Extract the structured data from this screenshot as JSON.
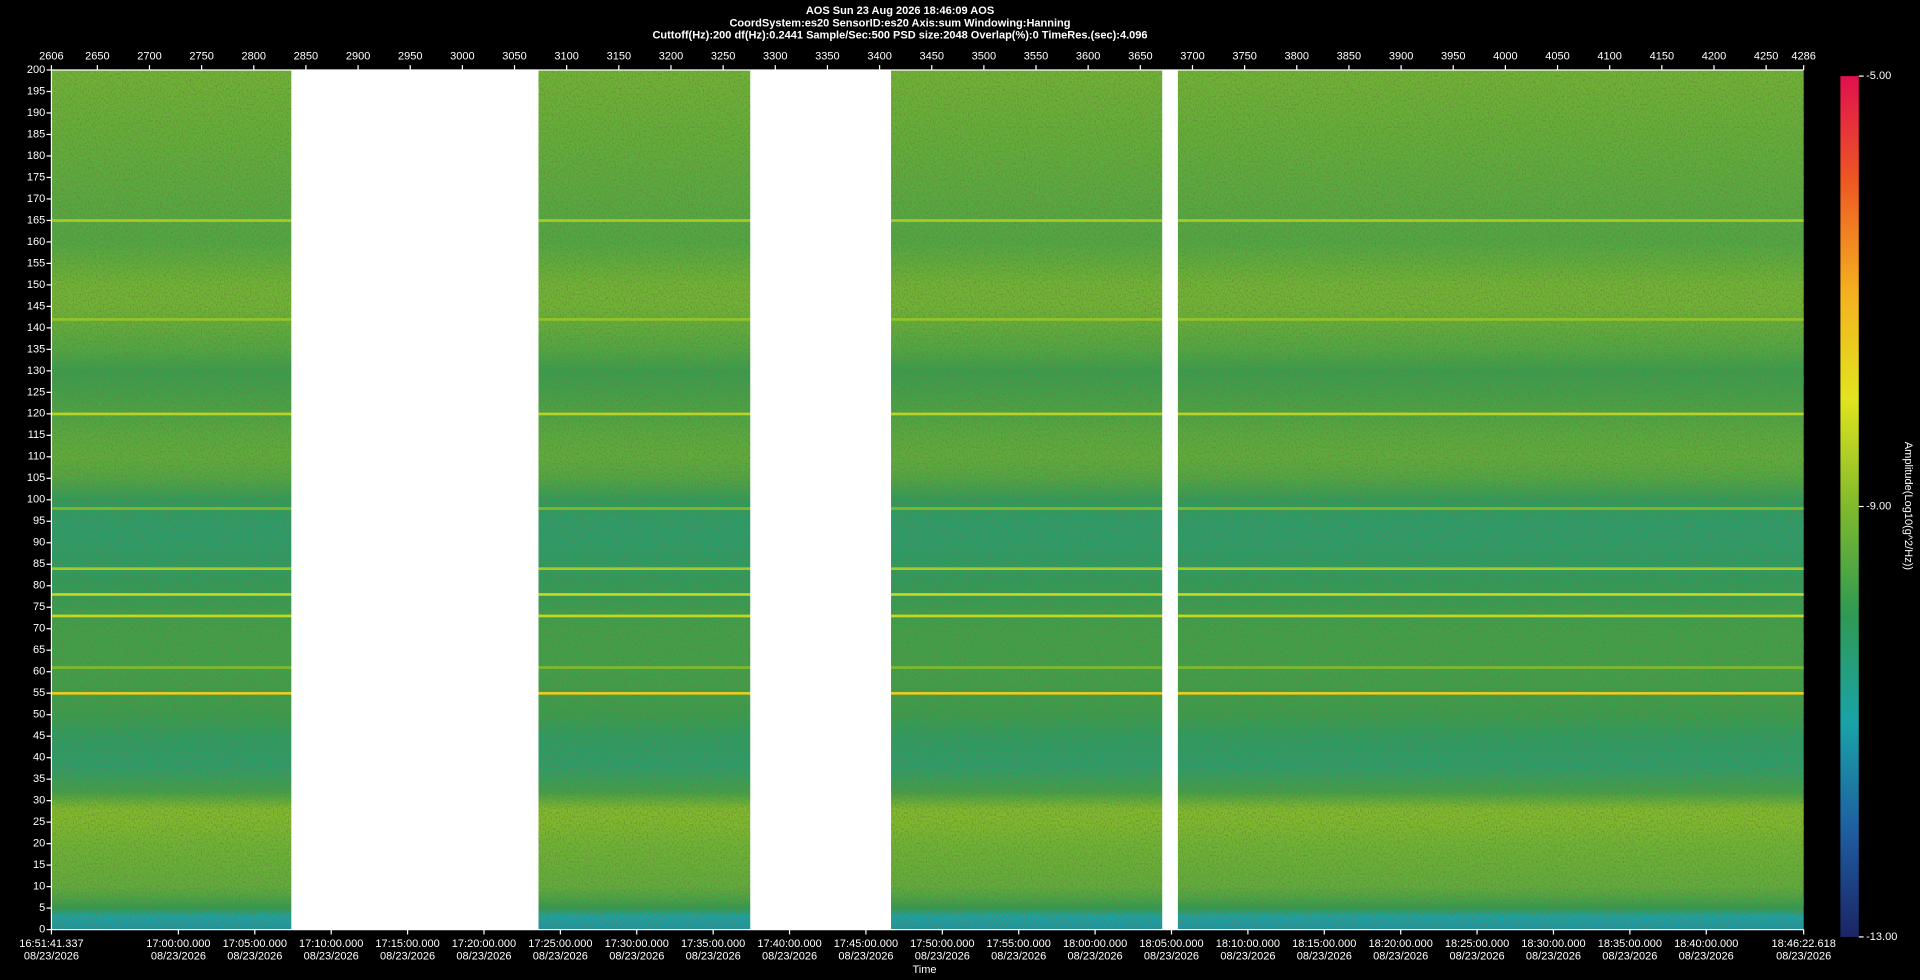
{
  "chart_data": {
    "type": "spectrogram",
    "title": "AOS  Sun 23 Aug 2026 18:46:09  AOS",
    "subtitle": [
      "CoordSystem:es20   SensorID:es20    Axis:sum    Windowing:Hanning",
      "Cuttoff(Hz):200     df(Hz):0.2441      Sample/Sec:500      PSD size:2048       Overlap(%):0       TimeRes.(sec):4.096"
    ],
    "xlabel": "Time",
    "colorbar_label": "Amplitude(Log10(g^2/Hz))",
    "xlim": [
      2606,
      4286
    ],
    "xticks": [
      2606,
      2650,
      2700,
      2750,
      2800,
      2850,
      2900,
      2950,
      3000,
      3050,
      3100,
      3150,
      3200,
      3250,
      3300,
      3350,
      3400,
      3450,
      3500,
      3550,
      3600,
      3650,
      3700,
      3750,
      3800,
      3850,
      3900,
      3950,
      4000,
      4050,
      4100,
      4150,
      4200,
      4250,
      4286
    ],
    "ylim": [
      0,
      200
    ],
    "yticks": [
      0,
      5,
      10,
      15,
      20,
      25,
      30,
      35,
      40,
      45,
      50,
      55,
      60,
      65,
      70,
      75,
      80,
      85,
      90,
      95,
      100,
      105,
      110,
      115,
      120,
      125,
      130,
      135,
      140,
      145,
      150,
      155,
      160,
      165,
      170,
      175,
      180,
      185,
      190,
      195,
      200
    ],
    "time_ticks": [
      {
        "time": "16:51:41.337",
        "date": "08/23/2026"
      },
      {
        "time": "17:00:00.000",
        "date": "08/23/2026"
      },
      {
        "time": "17:05:00.000",
        "date": "08/23/2026"
      },
      {
        "time": "17:10:00.000",
        "date": "08/23/2026"
      },
      {
        "time": "17:15:00.000",
        "date": "08/23/2026"
      },
      {
        "time": "17:20:00.000",
        "date": "08/23/2026"
      },
      {
        "time": "17:25:00.000",
        "date": "08/23/2026"
      },
      {
        "time": "17:30:00.000",
        "date": "08/23/2026"
      },
      {
        "time": "17:35:00.000",
        "date": "08/23/2026"
      },
      {
        "time": "17:40:00.000",
        "date": "08/23/2026"
      },
      {
        "time": "17:45:00.000",
        "date": "08/23/2026"
      },
      {
        "time": "17:50:00.000",
        "date": "08/23/2026"
      },
      {
        "time": "17:55:00.000",
        "date": "08/23/2026"
      },
      {
        "time": "18:00:00.000",
        "date": "08/23/2026"
      },
      {
        "time": "18:05:00.000",
        "date": "08/23/2026"
      },
      {
        "time": "18:10:00.000",
        "date": "08/23/2026"
      },
      {
        "time": "18:15:00.000",
        "date": "08/23/2026"
      },
      {
        "time": "18:20:00.000",
        "date": "08/23/2026"
      },
      {
        "time": "18:25:00.000",
        "date": "08/23/2026"
      },
      {
        "time": "18:30:00.000",
        "date": "08/23/2026"
      },
      {
        "time": "18:35:00.000",
        "date": "08/23/2026"
      },
      {
        "time": "18:40:00.000",
        "date": "08/23/2026"
      },
      {
        "time": "18:46:22.618",
        "date": "08/23/2026"
      }
    ],
    "clim": [
      -13,
      -5
    ],
    "cticks": [
      {
        "value": -5,
        "label": "-5.00"
      },
      {
        "value": -9,
        "label": "-9.00"
      },
      {
        "value": -13,
        "label": "-13.00"
      }
    ],
    "colormap": [
      "#1b2466",
      "#1e5fa0",
      "#1aa3a8",
      "#2f9a52",
      "#7fba2c",
      "#e2e41e",
      "#f4b020",
      "#ee5a22",
      "#e0104e"
    ],
    "profile": {
      "freq": [
        0,
        3,
        5,
        8,
        10,
        15,
        20,
        25,
        28,
        32,
        38,
        45,
        50,
        60,
        70,
        80,
        90,
        95,
        100,
        105,
        110,
        115,
        125,
        130,
        135,
        145,
        150,
        160,
        170,
        180,
        190,
        200
      ],
      "amplitude": [
        -11.2,
        -11,
        -10,
        -9.6,
        -9.4,
        -9.3,
        -9.2,
        -9,
        -9,
        -9.8,
        -10.3,
        -10.2,
        -9.9,
        -9.8,
        -9.8,
        -10.1,
        -10.3,
        -10.3,
        -10.1,
        -9.6,
        -9.4,
        -9.5,
        -9.8,
        -9.9,
        -9.6,
        -9.2,
        -9.2,
        -9.6,
        -9.5,
        -9.4,
        -9.3,
        -9.2
      ]
    },
    "tonal_lines": [
      {
        "freq": 55,
        "amplitude": -7.5
      },
      {
        "freq": 61,
        "amplitude": -9
      },
      {
        "freq": 73,
        "amplitude": -8.3
      },
      {
        "freq": 78,
        "amplitude": -8.3
      },
      {
        "freq": 84,
        "amplitude": -8.6
      },
      {
        "freq": 98,
        "amplitude": -9
      },
      {
        "freq": 120,
        "amplitude": -8.4
      },
      {
        "freq": 142,
        "amplitude": -8.8
      },
      {
        "freq": 165,
        "amplitude": -8.6
      }
    ],
    "gaps": [
      [
        2836,
        3073
      ],
      [
        3276,
        3411
      ],
      [
        3671,
        3686
      ]
    ]
  }
}
